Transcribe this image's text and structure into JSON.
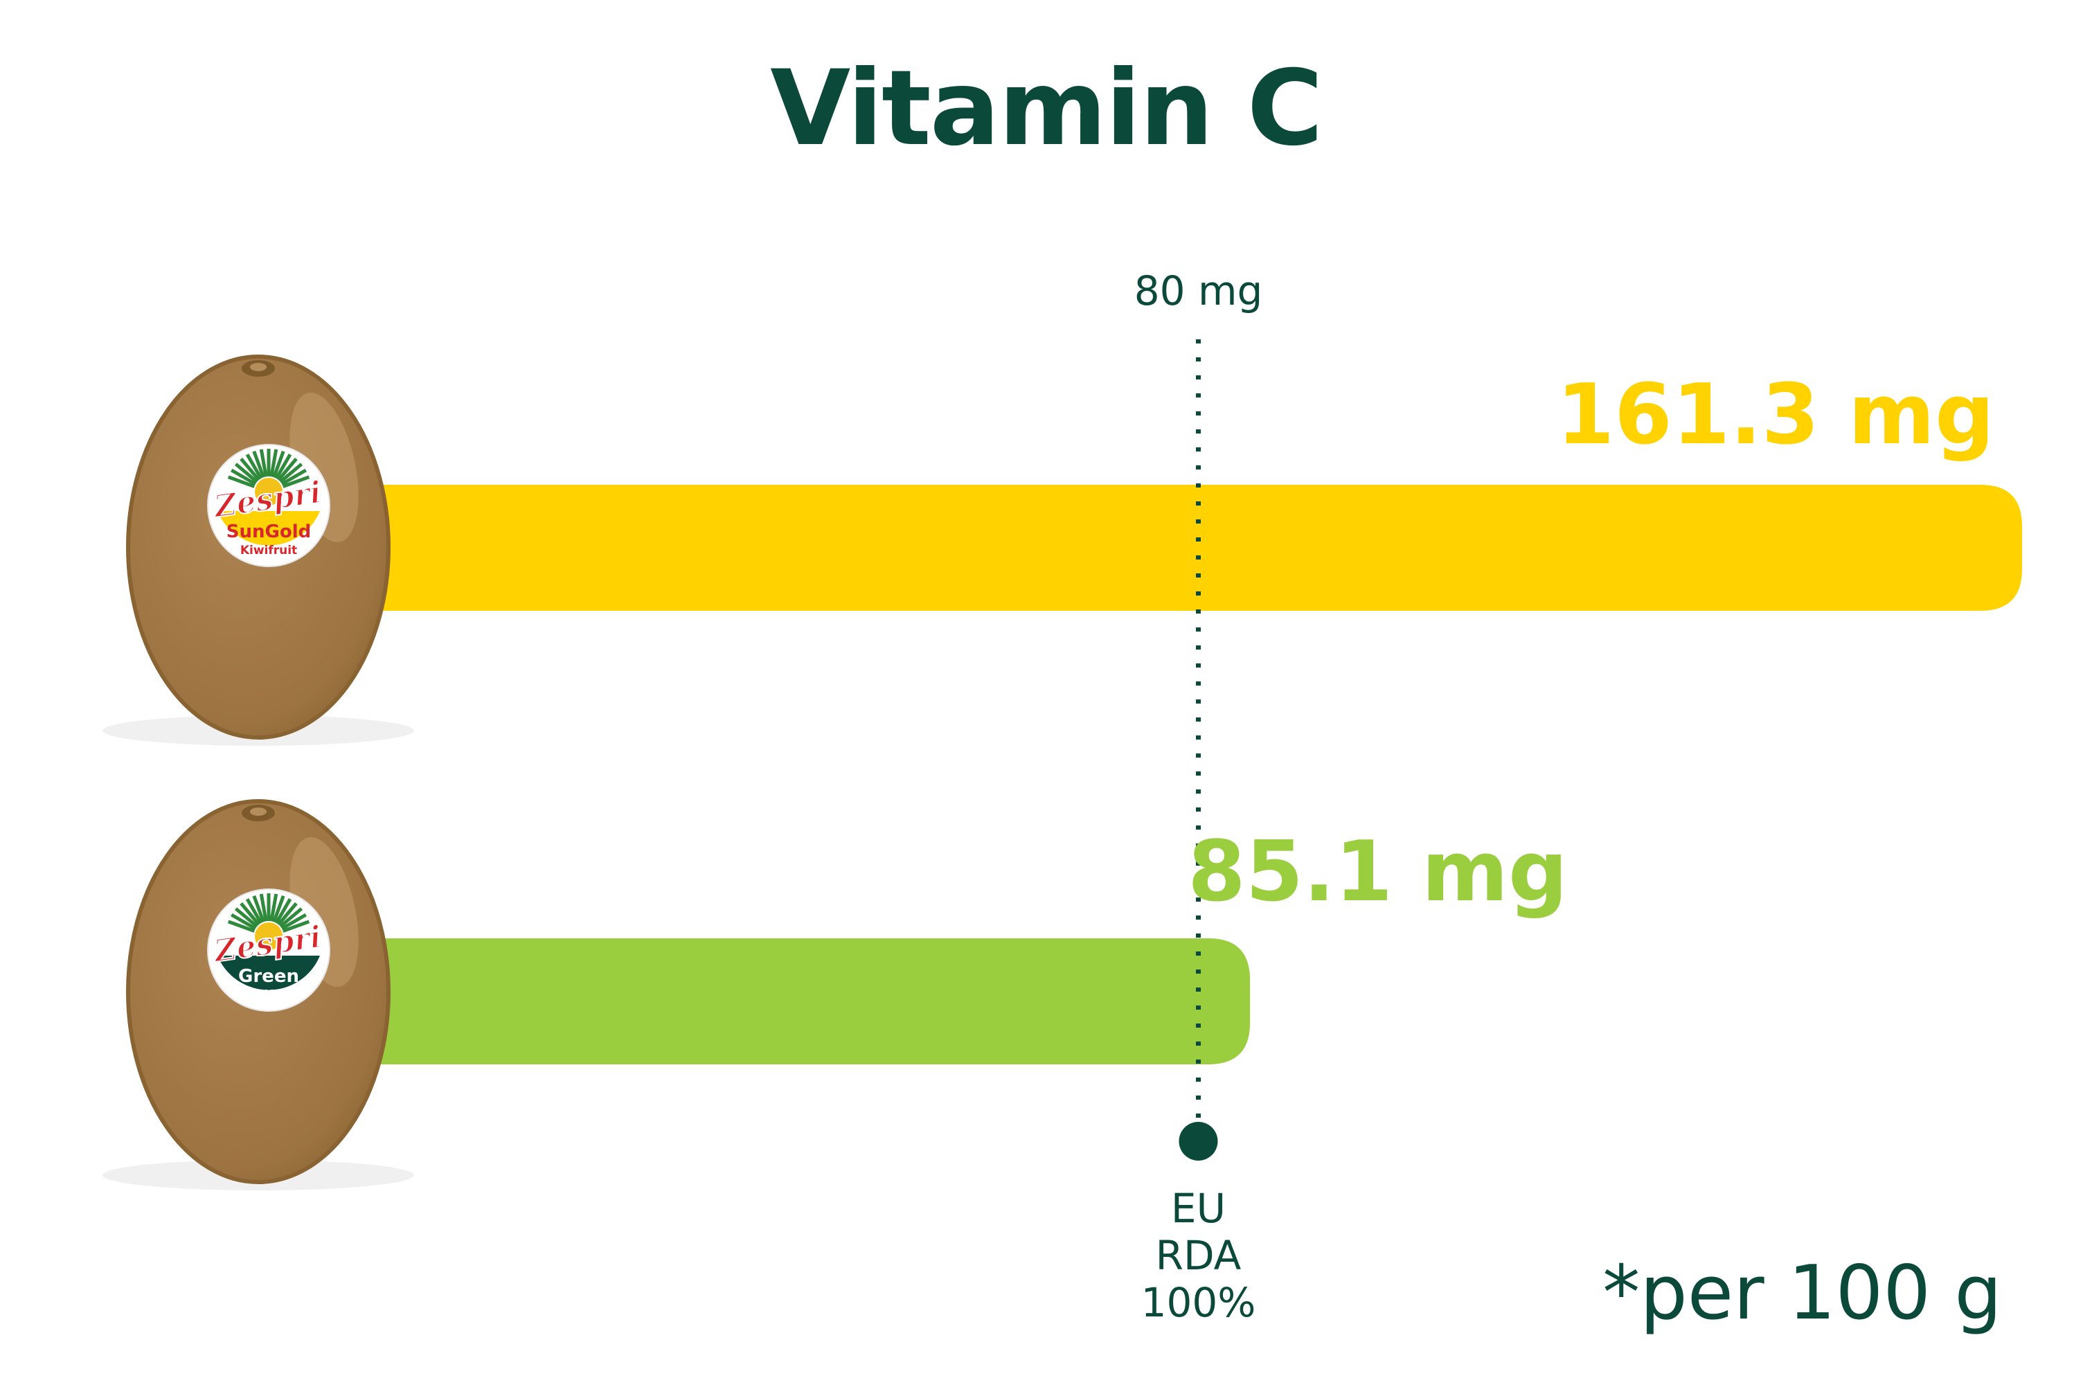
{
  "title": "Vitamin C",
  "footnote": "*per 100 g",
  "colors": {
    "title": "#0b4a3a",
    "sungold": "#ffd200",
    "green": "#9bce3f",
    "reference": "#0b4a3a",
    "kiwi_skin": "#a47a46"
  },
  "chart_data": {
    "type": "bar",
    "orientation": "horizontal",
    "unit": "mg",
    "categories": [
      "SunGold Kiwifruit",
      "Green Kiwifruit"
    ],
    "values": [
      161.3,
      85.1
    ],
    "value_labels": [
      "161.3 mg",
      "85.1 mg"
    ],
    "bar_colors": [
      "#ffd200",
      "#9bce3f"
    ],
    "xlim": [
      0,
      161.3
    ],
    "reference_line": {
      "value": 80,
      "top_label": "80 mg",
      "bottom_label": [
        "EU",
        "RDA",
        "100%"
      ]
    }
  },
  "icons": {
    "fruit_1": {
      "name": "sungold-kiwifruit-icon",
      "brand": "Zespri",
      "variety": "SunGold",
      "type": "Kiwifruit"
    },
    "fruit_2": {
      "name": "green-kiwifruit-icon",
      "brand": "Zespri",
      "variety": "Green",
      "type": "Kiwifruit"
    }
  }
}
